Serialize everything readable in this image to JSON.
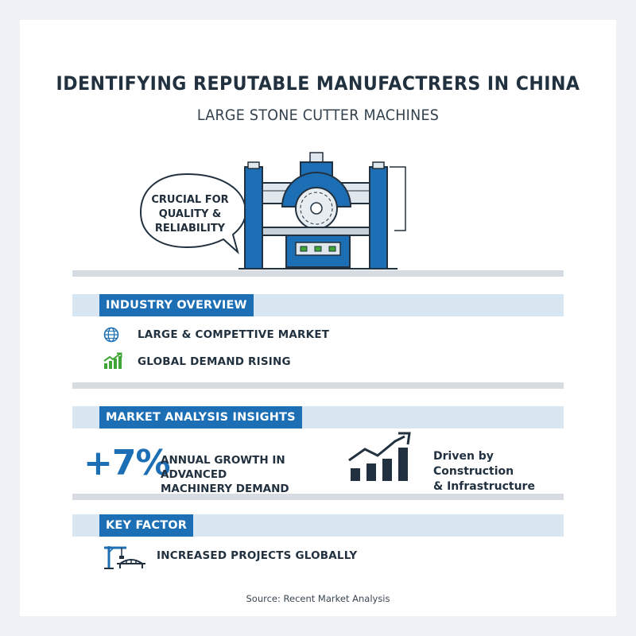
{
  "header": {
    "title": "IDENTIFYING REPUTABLE MANUFACTRERS IN CHINA",
    "subtitle": "LARGE STONE CUTTER MACHINES"
  },
  "callout": {
    "line1": "CRUCIAL FOR",
    "line2": "QUALITY &",
    "line3": "RELIABILITY"
  },
  "industry_overview": {
    "label": "INDUSTRY OVERVIEW",
    "items": [
      {
        "icon": "globe-icon",
        "text": "LARGE & COMPETTIVE MARKET"
      },
      {
        "icon": "rising-chart-icon",
        "text": "GLOBAL DEMAND RISING"
      }
    ]
  },
  "market_analysis": {
    "label": "MARKET ANALYSIS INSIGHTS",
    "growth_value": "+7%",
    "growth_line1": "ANNUAL GROWTH IN ADVANCED",
    "growth_line2": "MACHINERY DEMAND",
    "driver_line1": "Driven by Construction",
    "driver_line2": "& Infrastructure",
    "driver_icon": "bar-growth-chart-icon"
  },
  "key_factor": {
    "label": "KEY FACTOR",
    "icon": "construction-crane-icon",
    "text": "INCREASED PROJECTS GLOBALLY"
  },
  "footer": {
    "source": "Source: Recent Market Analysis"
  },
  "colors": {
    "accent_blue": "#1d6fb5",
    "band_light_blue": "#d8e6f1",
    "green": "#3fa535",
    "dark_text": "#22313f"
  }
}
